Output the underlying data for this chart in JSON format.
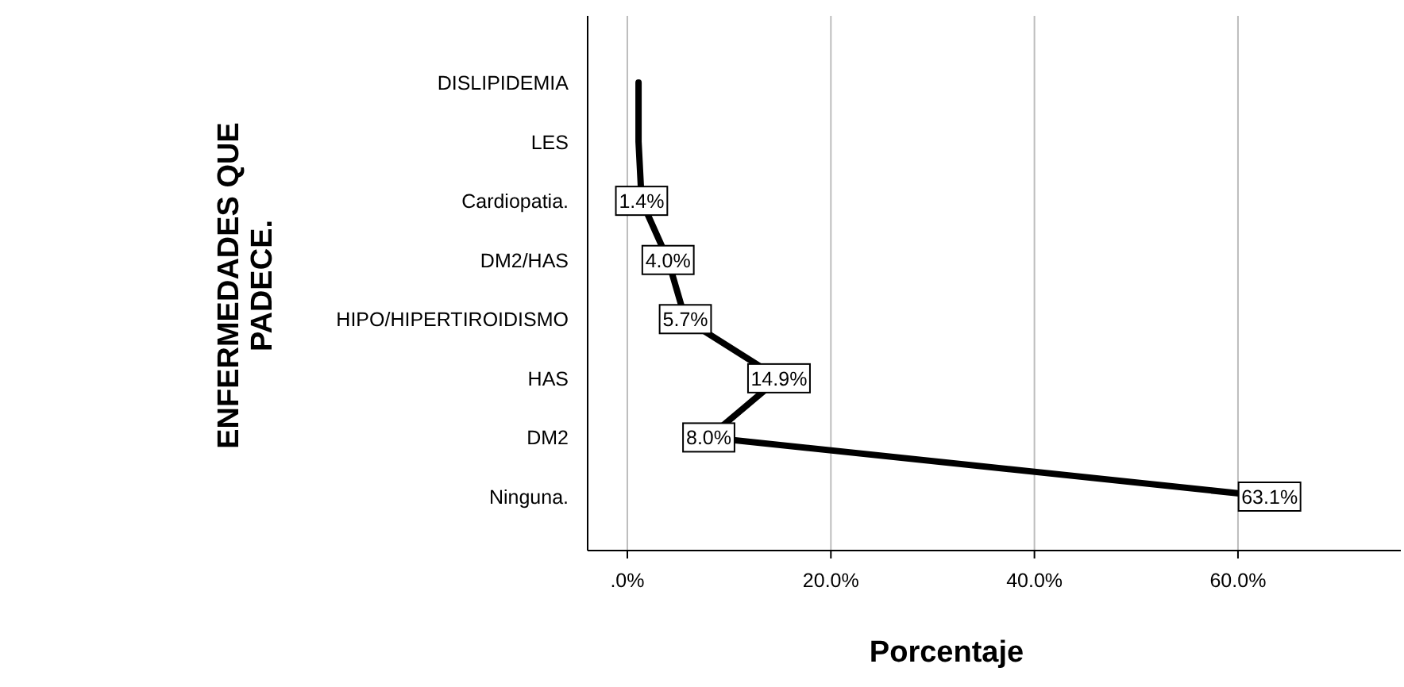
{
  "chart_data": {
    "type": "line",
    "orientation": "horizontal",
    "xlabel": "Porcentaje",
    "ylabel": "ENFERMEDADES QUE PADECE.",
    "categories": [
      "DISLIPIDEMIA",
      "LES",
      "Cardiopatia.",
      "DM2/HAS",
      "HIPO/HIPERTIROIDISMO",
      "HAS",
      "DM2",
      "Ninguna."
    ],
    "series": [
      {
        "color": "#000000",
        "values": [
          1.1,
          1.1,
          1.4,
          4.0,
          5.7,
          14.9,
          8.0,
          63.1
        ],
        "value_labels": [
          null,
          null,
          "1.4%",
          "4.0%",
          "5.7%",
          "14.9%",
          "8.0%",
          "63.1%"
        ]
      }
    ],
    "xlim": [
      -3.9,
      76
    ],
    "xticks": [
      {
        "value": 0,
        "label": ".0%"
      },
      {
        "value": 20,
        "label": "20.0%"
      },
      {
        "value": 40,
        "label": "40.0%"
      },
      {
        "value": 60,
        "label": "60.0%"
      }
    ],
    "grid": "x",
    "line_style": "solid"
  }
}
